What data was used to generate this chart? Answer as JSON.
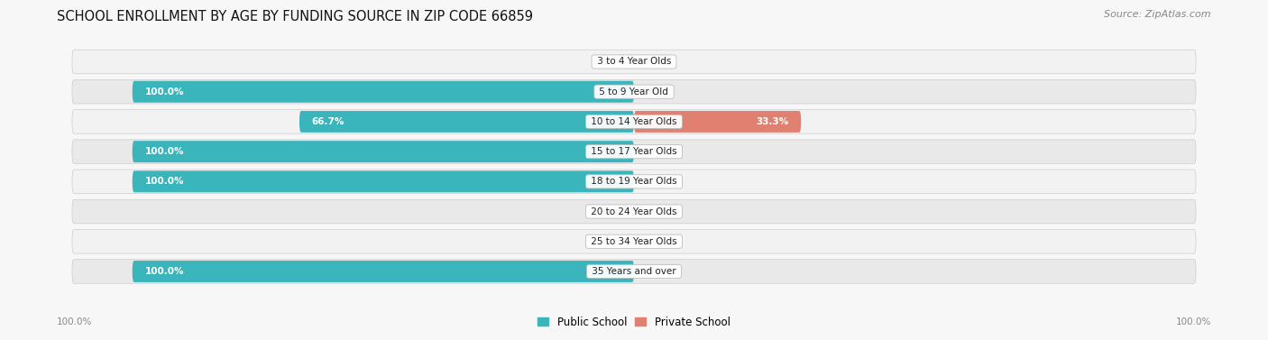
{
  "title": "SCHOOL ENROLLMENT BY AGE BY FUNDING SOURCE IN ZIP CODE 66859",
  "source": "Source: ZipAtlas.com",
  "categories": [
    "3 to 4 Year Olds",
    "5 to 9 Year Old",
    "10 to 14 Year Olds",
    "15 to 17 Year Olds",
    "18 to 19 Year Olds",
    "20 to 24 Year Olds",
    "25 to 34 Year Olds",
    "35 Years and over"
  ],
  "public_values": [
    0.0,
    100.0,
    66.7,
    100.0,
    100.0,
    0.0,
    0.0,
    100.0
  ],
  "private_values": [
    0.0,
    0.0,
    33.3,
    0.0,
    0.0,
    0.0,
    0.0,
    0.0
  ],
  "public_color": "#3ab5bc",
  "private_color": "#e08070",
  "public_color_light": "#a8dde0",
  "private_color_light": "#f0c0ba",
  "background_color": "#f7f7f7",
  "title_fontsize": 10.5,
  "source_fontsize": 8,
  "label_fontsize": 7.5,
  "legend_fontsize": 8.5,
  "axis_label_left": "100.0%",
  "axis_label_right": "100.0%",
  "max_value": 100.0
}
